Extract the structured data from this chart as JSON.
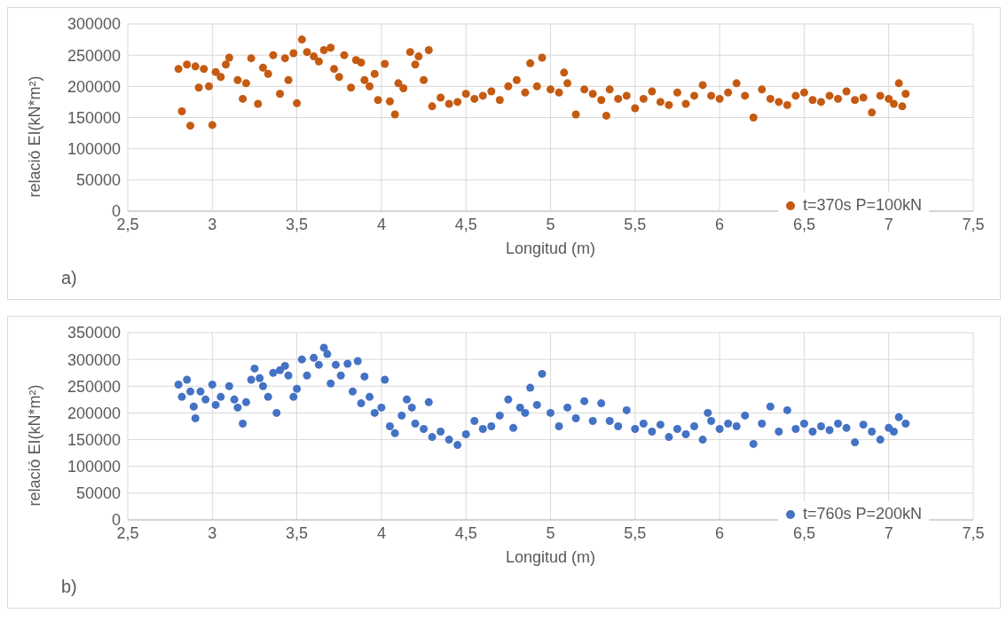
{
  "chart_data": [
    {
      "type": "scatter",
      "xlabel": "Longitud (m)",
      "ylabel": "relació EI(kN*m²)",
      "annotations": [
        "a)"
      ],
      "marker": "circle",
      "grid": true,
      "legend": "bottom right",
      "xlim": [
        2.5,
        7.5
      ],
      "xticks": [
        {
          "value": 2.5,
          "label": "2,5"
        },
        3,
        {
          "value": 3.5,
          "label": "3,5"
        },
        4,
        {
          "value": 4.5,
          "label": "4,5"
        },
        5,
        {
          "value": 5.5,
          "label": "5,5"
        },
        6,
        {
          "value": 6.5,
          "label": "6,5"
        },
        7,
        {
          "value": 7.5,
          "label": "7,5"
        }
      ],
      "ylim": [
        0,
        300000
      ],
      "yticks": [
        0,
        50000,
        100000,
        150000,
        200000,
        250000,
        300000
      ],
      "series": [
        {
          "name": "t=370s P=100kN",
          "color": "#c55a11",
          "x": [
            2.8,
            2.82,
            2.85,
            2.87,
            2.9,
            2.92,
            2.95,
            2.98,
            3.0,
            3.02,
            3.05,
            3.08,
            3.1,
            3.15,
            3.18,
            3.2,
            3.23,
            3.27,
            3.3,
            3.33,
            3.36,
            3.4,
            3.43,
            3.45,
            3.48,
            3.5,
            3.53,
            3.56,
            3.6,
            3.63,
            3.66,
            3.7,
            3.72,
            3.75,
            3.78,
            3.82,
            3.85,
            3.88,
            3.9,
            3.93,
            3.96,
            3.98,
            4.02,
            4.05,
            4.08,
            4.1,
            4.13,
            4.17,
            4.2,
            4.22,
            4.25,
            4.28,
            4.3,
            4.35,
            4.4,
            4.45,
            4.5,
            4.55,
            4.6,
            4.65,
            4.7,
            4.75,
            4.8,
            4.85,
            4.88,
            4.92,
            4.95,
            5.0,
            5.05,
            5.08,
            5.1,
            5.15,
            5.2,
            5.25,
            5.3,
            5.33,
            5.35,
            5.4,
            5.45,
            5.5,
            5.55,
            5.6,
            5.65,
            5.7,
            5.75,
            5.8,
            5.85,
            5.9,
            5.95,
            6.0,
            6.05,
            6.1,
            6.15,
            6.2,
            6.25,
            6.3,
            6.35,
            6.4,
            6.45,
            6.5,
            6.55,
            6.6,
            6.65,
            6.7,
            6.75,
            6.8,
            6.85,
            6.9,
            6.95,
            7.0,
            7.03,
            7.06,
            7.08,
            7.1
          ],
          "values": [
            228000,
            160000,
            235000,
            137000,
            232000,
            198000,
            228000,
            200000,
            138000,
            223000,
            215000,
            235000,
            246000,
            210000,
            180000,
            205000,
            245000,
            172000,
            230000,
            220000,
            250000,
            188000,
            245000,
            210000,
            253000,
            173000,
            275000,
            255000,
            248000,
            240000,
            258000,
            262000,
            228000,
            215000,
            250000,
            198000,
            242000,
            238000,
            210000,
            200000,
            220000,
            178000,
            236000,
            176000,
            155000,
            205000,
            197000,
            255000,
            235000,
            248000,
            210000,
            258000,
            168000,
            182000,
            172000,
            175000,
            188000,
            180000,
            185000,
            192000,
            178000,
            200000,
            210000,
            190000,
            237000,
            200000,
            246000,
            195000,
            190000,
            222000,
            205000,
            155000,
            195000,
            188000,
            178000,
            153000,
            195000,
            180000,
            185000,
            165000,
            180000,
            192000,
            175000,
            170000,
            190000,
            172000,
            185000,
            202000,
            185000,
            180000,
            190000,
            205000,
            185000,
            150000,
            195000,
            180000,
            175000,
            170000,
            185000,
            190000,
            178000,
            175000,
            185000,
            180000,
            192000,
            178000,
            182000,
            158000,
            185000,
            180000,
            172000,
            205000,
            168000,
            188000
          ]
        }
      ]
    },
    {
      "type": "scatter",
      "xlabel": "Longitud (m)",
      "ylabel": "relació EI(kN*m²)",
      "annotations": [
        "b)"
      ],
      "marker": "circle",
      "grid": true,
      "legend": "bottom right",
      "xlim": [
        2.5,
        7.5
      ],
      "xticks": [
        {
          "value": 2.5,
          "label": "2,5"
        },
        3,
        {
          "value": 3.5,
          "label": "3,5"
        },
        4,
        {
          "value": 4.5,
          "label": "4,5"
        },
        5,
        {
          "value": 5.5,
          "label": "5,5"
        },
        6,
        {
          "value": 6.5,
          "label": "6,5"
        },
        7,
        {
          "value": 7.5,
          "label": "7,5"
        }
      ],
      "ylim": [
        0,
        350000
      ],
      "yticks": [
        0,
        50000,
        100000,
        150000,
        200000,
        250000,
        300000,
        350000
      ],
      "series": [
        {
          "name": "t=760s P=200kN",
          "color": "#4472c4",
          "x": [
            2.8,
            2.82,
            2.85,
            2.87,
            2.89,
            2.9,
            2.93,
            2.96,
            3.0,
            3.02,
            3.05,
            3.1,
            3.13,
            3.15,
            3.18,
            3.2,
            3.23,
            3.25,
            3.28,
            3.3,
            3.33,
            3.36,
            3.38,
            3.4,
            3.43,
            3.45,
            3.48,
            3.5,
            3.53,
            3.56,
            3.6,
            3.63,
            3.66,
            3.68,
            3.7,
            3.73,
            3.76,
            3.8,
            3.83,
            3.86,
            3.88,
            3.9,
            3.93,
            3.96,
            4.0,
            4.02,
            4.05,
            4.08,
            4.12,
            4.15,
            4.18,
            4.2,
            4.25,
            4.28,
            4.3,
            4.35,
            4.4,
            4.45,
            4.5,
            4.55,
            4.6,
            4.65,
            4.7,
            4.75,
            4.78,
            4.82,
            4.85,
            4.88,
            4.92,
            4.95,
            5.0,
            5.05,
            5.1,
            5.15,
            5.2,
            5.25,
            5.3,
            5.35,
            5.4,
            5.45,
            5.5,
            5.55,
            5.6,
            5.65,
            5.7,
            5.75,
            5.8,
            5.85,
            5.9,
            5.93,
            5.95,
            6.0,
            6.05,
            6.1,
            6.15,
            6.2,
            6.25,
            6.3,
            6.35,
            6.4,
            6.45,
            6.5,
            6.55,
            6.6,
            6.65,
            6.7,
            6.75,
            6.8,
            6.85,
            6.9,
            6.95,
            7.0,
            7.03,
            7.06,
            7.1
          ],
          "values": [
            253000,
            230000,
            262000,
            240000,
            212000,
            190000,
            240000,
            225000,
            253000,
            215000,
            230000,
            250000,
            225000,
            210000,
            180000,
            220000,
            262000,
            283000,
            265000,
            250000,
            230000,
            275000,
            200000,
            280000,
            288000,
            270000,
            230000,
            245000,
            300000,
            270000,
            303000,
            290000,
            322000,
            310000,
            255000,
            290000,
            270000,
            292000,
            240000,
            297000,
            218000,
            268000,
            230000,
            200000,
            210000,
            262000,
            175000,
            162000,
            195000,
            225000,
            210000,
            180000,
            170000,
            220000,
            155000,
            165000,
            150000,
            140000,
            160000,
            185000,
            170000,
            175000,
            195000,
            225000,
            172000,
            210000,
            200000,
            247000,
            215000,
            273000,
            200000,
            175000,
            210000,
            190000,
            222000,
            185000,
            218000,
            185000,
            175000,
            205000,
            170000,
            180000,
            165000,
            178000,
            155000,
            170000,
            160000,
            175000,
            150000,
            200000,
            185000,
            170000,
            180000,
            175000,
            195000,
            142000,
            180000,
            212000,
            165000,
            205000,
            170000,
            180000,
            165000,
            175000,
            168000,
            180000,
            172000,
            145000,
            178000,
            165000,
            150000,
            172000,
            165000,
            192000,
            180000
          ]
        }
      ]
    }
  ]
}
